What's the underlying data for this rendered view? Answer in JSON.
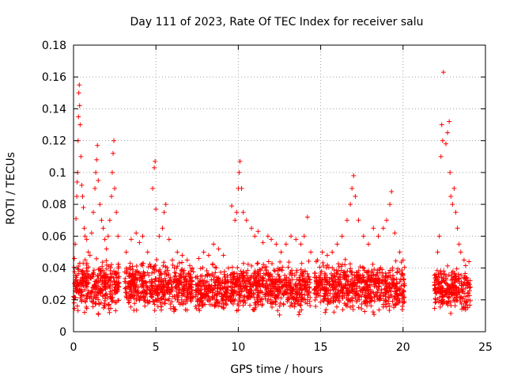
{
  "chart_data": {
    "type": "scatter",
    "title": "Day 111 of 2023, Rate Of TEC Index for receiver salu",
    "xlabel": "GPS time / hours",
    "ylabel": "ROTI / TECUs",
    "xlim": [
      0,
      25
    ],
    "ylim": [
      0,
      0.18
    ],
    "x_ticks": [
      0,
      5,
      10,
      15,
      20,
      25
    ],
    "y_ticks": [
      0,
      0.02,
      0.04,
      0.06,
      0.08,
      0.1,
      0.12,
      0.14,
      0.16,
      0.18
    ],
    "x_tick_labels": [
      "0",
      "5",
      "10",
      "15",
      "20",
      "25"
    ],
    "y_tick_labels": [
      "0",
      "0.02",
      "0.04",
      "0.06",
      "0.08",
      "0.1",
      "0.12",
      "0.14",
      "0.16",
      "0.18"
    ],
    "grid": true,
    "marker": "+",
    "color": "#ff0000",
    "series": [
      {
        "name": "ROTI",
        "points": [
          [
            0.05,
            0.046
          ],
          [
            0.1,
            0.055
          ],
          [
            0.15,
            0.071
          ],
          [
            0.2,
            0.085
          ],
          [
            0.22,
            0.094
          ],
          [
            0.25,
            0.1
          ],
          [
            0.28,
            0.12
          ],
          [
            0.3,
            0.135
          ],
          [
            0.32,
            0.15
          ],
          [
            0.35,
            0.155
          ],
          [
            0.37,
            0.142
          ],
          [
            0.4,
            0.13
          ],
          [
            0.45,
            0.11
          ],
          [
            0.5,
            0.092
          ],
          [
            0.55,
            0.085
          ],
          [
            0.6,
            0.078
          ],
          [
            0.65,
            0.065
          ],
          [
            0.7,
            0.06
          ],
          [
            0.8,
            0.058
          ],
          [
            0.9,
            0.05
          ],
          [
            1.0,
            0.048
          ],
          [
            1.1,
            0.062
          ],
          [
            1.2,
            0.075
          ],
          [
            1.3,
            0.09
          ],
          [
            1.35,
            0.1
          ],
          [
            1.4,
            0.108
          ],
          [
            1.45,
            0.117
          ],
          [
            1.5,
            0.095
          ],
          [
            1.6,
            0.08
          ],
          [
            1.7,
            0.07
          ],
          [
            1.8,
            0.065
          ],
          [
            1.9,
            0.058
          ],
          [
            2.0,
            0.052
          ],
          [
            2.1,
            0.06
          ],
          [
            2.2,
            0.07
          ],
          [
            2.3,
            0.085
          ],
          [
            2.35,
            0.1
          ],
          [
            2.4,
            0.112
          ],
          [
            2.45,
            0.12
          ],
          [
            2.5,
            0.09
          ],
          [
            2.6,
            0.075
          ],
          [
            2.7,
            0.06
          ],
          [
            3.2,
            0.05
          ],
          [
            3.5,
            0.058
          ],
          [
            3.8,
            0.062
          ],
          [
            4.0,
            0.056
          ],
          [
            4.2,
            0.06
          ],
          [
            4.5,
            0.05
          ],
          [
            4.8,
            0.09
          ],
          [
            4.9,
            0.103
          ],
          [
            4.95,
            0.107
          ],
          [
            5.0,
            0.077
          ],
          [
            5.2,
            0.06
          ],
          [
            5.4,
            0.065
          ],
          [
            5.5,
            0.075
          ],
          [
            5.6,
            0.08
          ],
          [
            5.8,
            0.058
          ],
          [
            6.0,
            0.045
          ],
          [
            6.3,
            0.05
          ],
          [
            6.6,
            0.048
          ],
          [
            6.9,
            0.045
          ],
          [
            7.2,
            0.04
          ],
          [
            7.6,
            0.046
          ],
          [
            7.9,
            0.05
          ],
          [
            8.2,
            0.048
          ],
          [
            8.5,
            0.055
          ],
          [
            8.8,
            0.052
          ],
          [
            9.1,
            0.048
          ],
          [
            9.4,
            0.04
          ],
          [
            9.6,
            0.079
          ],
          [
            9.8,
            0.07
          ],
          [
            9.9,
            0.075
          ],
          [
            10.0,
            0.09
          ],
          [
            10.05,
            0.1
          ],
          [
            10.1,
            0.107
          ],
          [
            10.2,
            0.09
          ],
          [
            10.3,
            0.075
          ],
          [
            10.5,
            0.07
          ],
          [
            10.8,
            0.065
          ],
          [
            11.0,
            0.06
          ],
          [
            11.2,
            0.063
          ],
          [
            11.5,
            0.056
          ],
          [
            11.8,
            0.06
          ],
          [
            12.0,
            0.058
          ],
          [
            12.3,
            0.055
          ],
          [
            12.6,
            0.05
          ],
          [
            12.9,
            0.055
          ],
          [
            13.2,
            0.06
          ],
          [
            13.5,
            0.058
          ],
          [
            13.8,
            0.055
          ],
          [
            14.0,
            0.06
          ],
          [
            14.2,
            0.072
          ],
          [
            14.4,
            0.05
          ],
          [
            14.8,
            0.045
          ],
          [
            15.1,
            0.05
          ],
          [
            15.4,
            0.048
          ],
          [
            15.7,
            0.05
          ],
          [
            16.0,
            0.055
          ],
          [
            16.3,
            0.06
          ],
          [
            16.6,
            0.07
          ],
          [
            16.8,
            0.08
          ],
          [
            16.9,
            0.09
          ],
          [
            17.0,
            0.098
          ],
          [
            17.1,
            0.085
          ],
          [
            17.3,
            0.07
          ],
          [
            17.6,
            0.06
          ],
          [
            17.9,
            0.055
          ],
          [
            18.2,
            0.065
          ],
          [
            18.5,
            0.06
          ],
          [
            18.8,
            0.065
          ],
          [
            19.0,
            0.07
          ],
          [
            19.2,
            0.08
          ],
          [
            19.3,
            0.088
          ],
          [
            19.5,
            0.062
          ],
          [
            19.8,
            0.05
          ],
          [
            20.0,
            0.045
          ],
          [
            22.1,
            0.05
          ],
          [
            22.2,
            0.06
          ],
          [
            22.3,
            0.11
          ],
          [
            22.35,
            0.13
          ],
          [
            22.4,
            0.12
          ],
          [
            22.45,
            0.163
          ],
          [
            22.6,
            0.118
          ],
          [
            22.7,
            0.125
          ],
          [
            22.8,
            0.132
          ],
          [
            22.85,
            0.1
          ],
          [
            22.9,
            0.085
          ],
          [
            23.0,
            0.08
          ],
          [
            23.1,
            0.09
          ],
          [
            23.2,
            0.075
          ],
          [
            23.3,
            0.065
          ],
          [
            23.4,
            0.055
          ],
          [
            23.5,
            0.05
          ],
          [
            23.7,
            0.045
          ],
          [
            24.0,
            0.044
          ]
        ],
        "dense_bands": [
          {
            "x": [
              0.0,
              2.8
            ],
            "y": [
              0.008,
              0.05
            ]
          },
          {
            "x": [
              3.1,
              7.3
            ],
            "y": [
              0.008,
              0.048
            ]
          },
          {
            "x": [
              7.4,
              9.4
            ],
            "y": [
              0.008,
              0.045
            ]
          },
          {
            "x": [
              9.5,
              14.4
            ],
            "y": [
              0.008,
              0.048
            ]
          },
          {
            "x": [
              14.6,
              20.1
            ],
            "y": [
              0.008,
              0.048
            ]
          },
          {
            "x": [
              21.9,
              24.1
            ],
            "y": [
              0.008,
              0.045
            ]
          }
        ]
      }
    ]
  }
}
